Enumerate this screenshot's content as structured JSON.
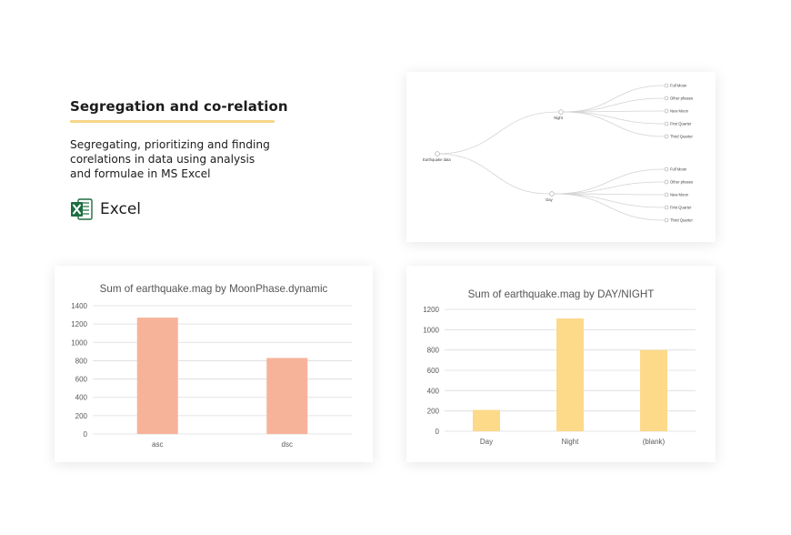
{
  "intro": {
    "title": "Segregation and co-relation",
    "description": "Segregating, prioritizing and finding corelations in data using analysis and formulae in MS Excel",
    "tool": {
      "label": "Excel",
      "icon": "excel-icon",
      "color": "#1e6e42"
    }
  },
  "tree": {
    "root": "Earthquake data",
    "branches": [
      {
        "label": "Night",
        "children": [
          "Full Moon",
          "Other phases",
          "New Moon",
          "First Quarter",
          "Third Quarter"
        ]
      },
      {
        "label": "Day",
        "children": [
          "Full Moon",
          "Other phases",
          "New Moon",
          "First Quarter",
          "Third Quarter"
        ]
      }
    ]
  },
  "chart_data": [
    {
      "type": "bar",
      "title": "Sum of earthquake.mag by MoonPhase.dynamic",
      "categories": [
        "asc",
        "dsc"
      ],
      "values": [
        1270,
        830
      ],
      "ylim": [
        0,
        1400
      ],
      "yticks": [
        "0",
        "200",
        "400",
        "600",
        "800",
        "1000",
        "1200",
        "1400"
      ],
      "color": "#f6b39a",
      "grid": true
    },
    {
      "type": "bar",
      "title": "Sum of earthquake.mag by DAY/NIGHT",
      "categories": [
        "Day",
        "Night",
        "(blank)"
      ],
      "values": [
        210,
        1110,
        800
      ],
      "ylim": [
        0,
        1200
      ],
      "yticks": [
        "0",
        "200",
        "400",
        "600",
        "800",
        "1000",
        "1200"
      ],
      "color": "#fdd98a",
      "grid": true
    }
  ]
}
